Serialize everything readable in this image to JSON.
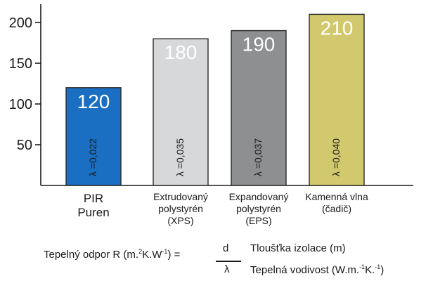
{
  "chart_data": {
    "type": "bar",
    "title": "",
    "xlabel": "",
    "ylabel": "",
    "ylim": [
      0,
      215
    ],
    "yticks": [
      "50",
      "100",
      "150",
      "200"
    ],
    "categories": [
      [
        "PIR",
        "Puren"
      ],
      [
        "Extrudovaný",
        "polystyrén",
        "(XPS)"
      ],
      [
        "Expandovaný",
        "polystyrén",
        "(EPS)"
      ],
      [
        "Kamenná vlna",
        "(čadič)"
      ]
    ],
    "values": [
      120,
      180,
      190,
      210
    ],
    "value_labels": [
      "120",
      "180",
      "190",
      "210"
    ],
    "lambda_labels": [
      "λ =0,022",
      "λ =0,035",
      "λ =0,037",
      "λ =0,040"
    ],
    "colors": [
      "#1b6fc2",
      "#d6d8d9",
      "#8e8f91",
      "#d2c96e"
    ]
  },
  "formula": {
    "lead": "Tepelný odpor R (m.",
    "lead_sup": "2",
    "lead_mid": "K.W",
    "lead_sup2": "-1",
    "lead_end": ") =",
    "numerator": "d",
    "denominator": "λ",
    "num_desc": "Tloušťka izolace (m)",
    "den_desc_a": "Tepelná vodivost (W.m.",
    "den_sup": "-1",
    "den_desc_b": "K.",
    "den_sup2": "-1",
    "den_desc_c": ")"
  }
}
